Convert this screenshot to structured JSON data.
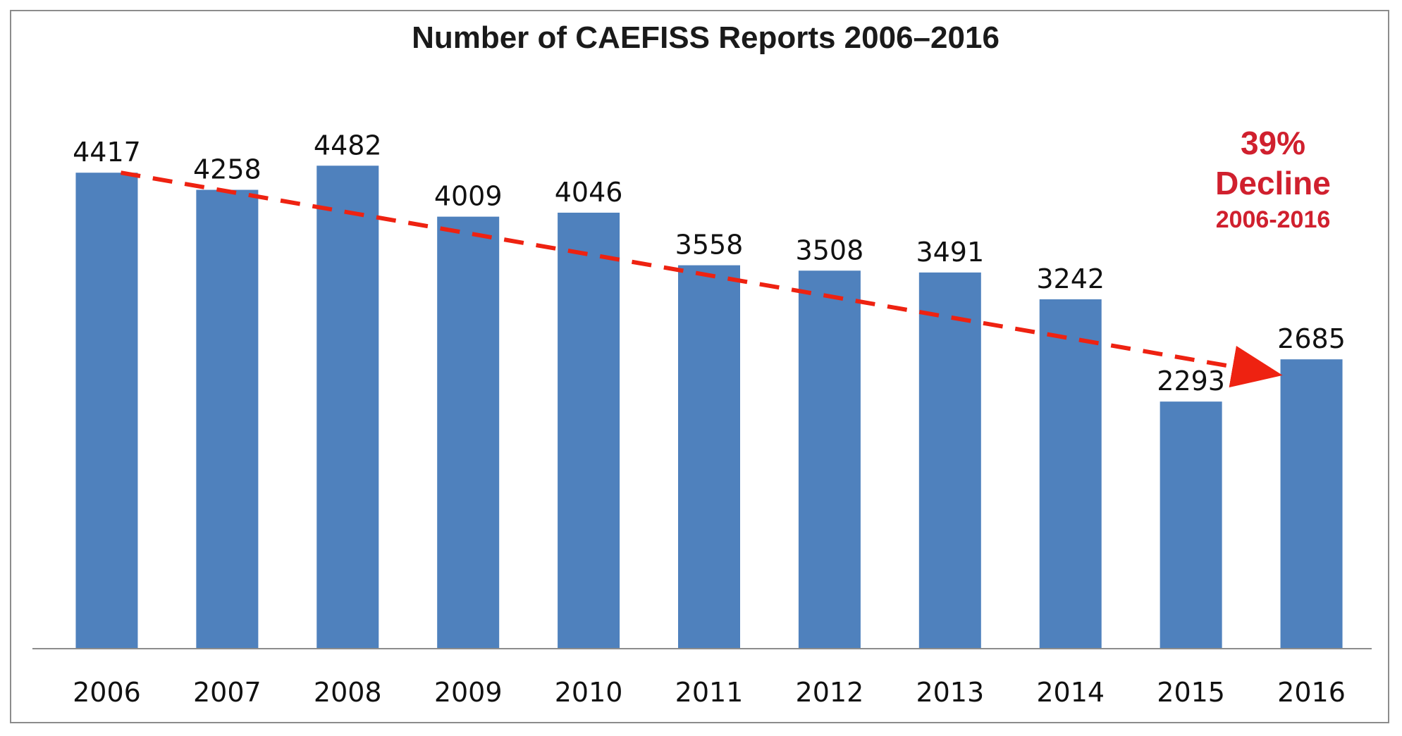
{
  "chart_data": {
    "type": "bar",
    "title": "Number of CAEFISS Reports 2006–2016",
    "categories": [
      "2006",
      "2007",
      "2008",
      "2009",
      "2010",
      "2011",
      "2012",
      "2013",
      "2014",
      "2015",
      "2016"
    ],
    "values": [
      4417,
      4258,
      4482,
      4009,
      4046,
      3558,
      3508,
      3491,
      3242,
      2293,
      2685
    ],
    "data_labels": [
      "4417",
      "4258",
      "4482",
      "4009",
      "4046",
      "3558",
      "3508",
      "3491",
      "3242",
      "2293",
      "2685"
    ],
    "xlabel": "",
    "ylabel": "",
    "ylim": [
      0,
      5000
    ],
    "grid": false,
    "legend": "none",
    "bar_color": "#4f81bd",
    "trend": {
      "style": "dashed-arrow",
      "color": "#ee2211",
      "from": {
        "x": "2006",
        "y": 4417
      },
      "to": {
        "x": "2016",
        "y": 2800
      }
    },
    "annotation": {
      "line1": "39%",
      "line2": "Decline",
      "line3": "2006-2016",
      "color": "#d0202e"
    }
  }
}
